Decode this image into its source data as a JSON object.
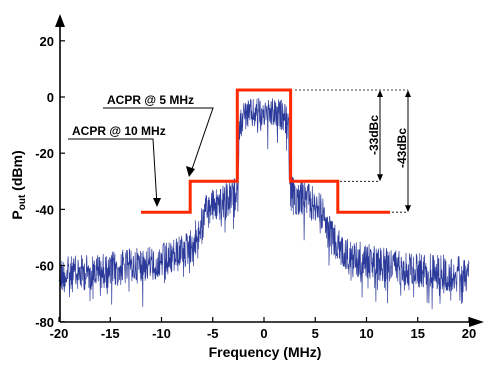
{
  "chart_data": {
    "type": "line",
    "title": "",
    "xlabel": "Frequency (MHz)",
    "ylabel_main": "P",
    "ylabel_sub": "out",
    "ylabel_tail": " (dBm)",
    "xlim": [
      -20,
      21
    ],
    "ylim": [
      -80,
      25
    ],
    "xticks": [
      -20,
      -15,
      -10,
      -5,
      0,
      5,
      10,
      15,
      20
    ],
    "yticks": [
      -80,
      -60,
      -40,
      -20,
      0,
      20
    ],
    "grid": false,
    "colors": {
      "spectrum": "#2b3a9a",
      "mask": "#ff2a00",
      "axes": "#000000"
    },
    "series": [
      {
        "role": "spectrum-envelope",
        "points": [
          [
            -20,
            -57
          ],
          [
            -15,
            -55
          ],
          [
            -10,
            -52
          ],
          [
            -8,
            -49
          ],
          [
            -7,
            -46
          ],
          [
            -6,
            -39
          ],
          [
            -5.5,
            -33
          ],
          [
            -4,
            -31
          ],
          [
            -3,
            -29
          ],
          [
            -2.6,
            -28
          ],
          [
            -2.4,
            -5
          ],
          [
            -2,
            -1
          ],
          [
            0,
            0
          ],
          [
            2,
            -1
          ],
          [
            2.4,
            -6
          ],
          [
            2.6,
            -28
          ],
          [
            3,
            -29
          ],
          [
            4,
            -30
          ],
          [
            5.5,
            -33
          ],
          [
            6,
            -39
          ],
          [
            7,
            -46
          ],
          [
            8,
            -50
          ],
          [
            10,
            -52
          ],
          [
            15,
            -55
          ],
          [
            20,
            -57
          ]
        ]
      },
      {
        "role": "acpr-mask",
        "points": [
          [
            -12,
            -41
          ],
          [
            -7.2,
            -41
          ],
          [
            -7.2,
            -30
          ],
          [
            -2.6,
            -30
          ],
          [
            -2.6,
            2.5
          ],
          [
            2.6,
            2.5
          ],
          [
            2.6,
            -30
          ],
          [
            7.2,
            -30
          ],
          [
            7.2,
            -41
          ],
          [
            12.3,
            -41
          ]
        ]
      }
    ],
    "annotations": {
      "acpr_5": "ACPR @ 5 MHz",
      "acpr_10": "ACPR @ 10 MHz",
      "dbc_33": "-33dBc",
      "dbc_43": "-43dBc"
    }
  }
}
